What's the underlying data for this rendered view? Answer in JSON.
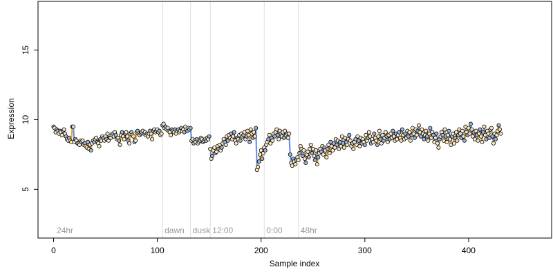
{
  "chart_data": {
    "type": "scatter",
    "xlabel": "Sample index",
    "ylabel": "Expression",
    "xlim": [
      -15,
      480
    ],
    "ylim": [
      1.5,
      18.5
    ],
    "xticks": [
      0,
      100,
      200,
      300,
      400
    ],
    "yticks": [
      5,
      10,
      15
    ],
    "grid": false,
    "conditions": [
      {
        "label": "24hr",
        "x": 1
      },
      {
        "label": "dawn",
        "x": 105
      },
      {
        "label": "dusk",
        "x": 132
      },
      {
        "label": "12:00",
        "x": 151
      },
      {
        "label": "0:00",
        "x": 203
      },
      {
        "label": "48hr",
        "x": 236
      }
    ],
    "separators": [
      105,
      132,
      151,
      203,
      236
    ],
    "colors": {
      "blue": "#6495ed",
      "orange": "#f5a623",
      "point_fill_light": "#fbe6c2",
      "point_fill_dark": "#9ab3d6",
      "separator": "#dddddd",
      "condition_text": "#999999"
    },
    "series": [
      {
        "values": [
          9.5,
          9.4,
          9.1,
          9.3,
          9.2,
          9.0,
          9.2,
          9.1,
          8.9,
          9.2,
          9.3,
          9.0,
          8.8,
          8.6,
          8.5,
          8.7,
          8.5,
          8.4,
          9.5,
          9.5,
          8.4,
          8.6,
          8.5,
          8.3,
          8.3,
          8.2,
          8.5,
          8.4,
          8.5,
          8.2,
          8.3,
          8.1,
          8.0,
          8.4,
          7.9,
          8.2,
          7.8,
          8.3,
          8.5,
          8.4,
          8.6,
          8.7,
          8.4,
          8.3,
          8.1,
          8.6,
          8.5,
          8.8,
          8.7,
          8.5,
          8.8,
          8.6,
          9.0,
          8.5,
          8.7,
          8.7,
          8.9,
          9.0,
          8.8,
          9.1,
          8.9,
          8.6,
          8.7,
          8.5,
          8.2,
          8.9,
          9.1,
          8.8,
          8.6,
          9.0,
          9.1,
          8.8,
          8.5,
          8.3,
          9.0,
          9.1,
          8.9,
          8.8,
          8.4,
          8.5,
          9.1,
          9.2,
          9.0,
          8.9,
          9.0,
          9.1,
          9.2,
          9.0,
          9.1,
          8.9,
          9.0,
          8.8,
          9.0,
          9.2,
          9.0,
          8.6,
          9.2,
          9.3,
          9.1,
          9.2,
          9.3,
          9.1,
          9.2,
          8.9,
          9.0,
          9.6,
          9.7,
          9.4,
          9.5,
          9.3,
          9.4,
          9.2,
          9.1,
          8.9,
          9.3,
          9.2,
          9.1,
          9.3,
          9.0,
          9.2,
          9.3,
          9.1,
          9.2,
          9.4,
          9.2,
          9.3,
          9.1,
          9.5,
          9.3,
          9.2,
          9.4,
          9.3,
          9.4,
          8.5,
          8.6,
          8.3,
          8.5,
          8.4,
          8.6,
          8.3,
          8.4,
          8.5,
          8.7,
          8.6,
          8.4,
          8.5,
          8.6,
          8.5,
          8.7,
          8.6,
          8.8,
          7.9,
          7.2,
          7.4,
          7.8,
          8.0,
          7.6,
          7.7,
          8.1,
          7.9,
          8.2,
          7.8,
          8.0,
          8.3,
          8.6,
          8.4,
          8.2,
          8.8,
          8.5,
          8.9,
          8.7,
          9.0,
          8.6,
          8.8,
          9.1,
          8.5,
          8.3,
          8.7,
          8.6,
          8.9,
          8.5,
          9.0,
          8.8,
          8.9,
          9.1,
          8.6,
          8.8,
          9.2,
          8.9,
          8.4,
          9.3,
          9.0,
          8.7,
          9.1,
          8.8,
          9.4,
          6.4,
          6.6,
          7.0,
          7.5,
          7.8,
          7.2,
          7.6,
          8.0,
          7.8,
          8.2,
          8.4,
          8.6,
          8.9,
          8.3,
          8.7,
          8.5,
          9.0,
          8.8,
          9.1,
          9.3,
          8.9,
          8.6,
          9.2,
          9.0,
          8.8,
          9.1,
          8.7,
          9.2,
          8.9,
          9.0,
          8.7,
          9.0,
          7.5,
          6.9,
          6.7,
          7.2,
          7.0,
          6.8,
          7.1,
          7.3,
          7.1,
          7.6,
          8.1,
          7.9,
          7.4,
          7.8,
          7.2,
          6.9,
          7.5,
          7.7,
          7.3,
          7.9,
          8.2,
          7.6,
          7.9,
          7.4,
          7.1,
          7.8,
          6.8,
          7.3,
          7.6,
          7.9,
          7.7,
          8.1,
          7.5,
          8.0,
          7.8,
          7.3,
          7.9,
          8.2,
          7.6,
          8.4,
          8.1,
          7.8,
          8.3,
          8.0,
          8.6,
          8.2,
          8.5,
          7.9,
          8.4,
          8.1,
          8.8,
          8.3,
          8.0,
          8.7,
          8.4,
          8.2,
          8.6,
          8.9,
          8.5,
          8.1,
          8.3,
          7.9,
          8.4,
          8.6,
          8.2,
          8.8,
          8.5,
          8.1,
          8.7,
          8.3,
          8.6,
          8.4,
          8.2,
          8.9,
          8.5,
          8.7,
          9.1,
          8.8,
          8.3,
          8.6,
          8.4,
          9.0,
          8.7,
          8.5,
          8.2,
          8.8,
          9.2,
          8.6,
          8.3,
          8.9,
          8.5,
          8.7,
          9.1,
          8.8,
          8.4,
          8.9,
          8.6,
          9.0,
          8.7,
          9.2,
          8.8,
          8.5,
          9.0,
          8.6,
          8.9,
          9.1,
          8.7,
          8.5,
          9.3,
          8.9,
          8.6,
          9.0,
          8.7,
          9.2,
          8.8,
          9.1,
          8.5,
          8.9,
          9.4,
          9.0,
          8.7,
          9.3,
          8.9,
          9.2,
          9.6,
          9.1,
          8.8,
          9.3,
          9.0,
          8.6,
          8.9,
          9.2,
          8.8,
          8.5,
          9.0,
          9.4,
          8.7,
          9.1,
          8.9,
          8.4,
          8.7,
          9.0,
          8.3,
          8.0,
          8.6,
          8.8,
          9.1,
          8.9,
          8.5,
          9.3,
          8.8,
          8.4,
          8.9,
          9.2,
          8.6,
          8.2,
          8.8,
          9.0,
          8.3,
          8.7,
          9.1,
          8.5,
          8.9,
          9.3,
          9.0,
          8.7,
          9.2,
          8.8,
          8.5,
          9.5,
          9.1,
          8.9,
          9.4,
          9.0,
          9.7,
          9.3,
          8.8,
          9.1,
          8.6,
          9.2,
          8.9,
          8.5,
          9.0,
          9.3,
          8.8,
          8.4,
          9.1,
          9.5,
          8.9,
          8.6,
          9.2,
          9.0,
          8.7,
          9.3,
          9.4,
          8.8,
          8.3,
          9.0,
          8.6,
          8.9,
          9.2,
          9.6,
          9.3,
          9.0
        ]
      }
    ]
  }
}
